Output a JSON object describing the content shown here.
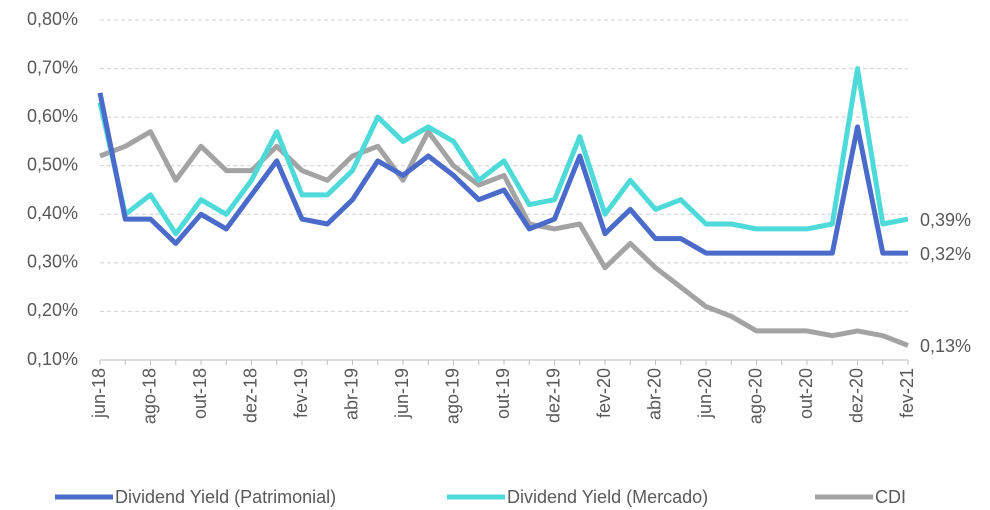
{
  "chart_data": {
    "type": "line",
    "categories": [
      "jun-18",
      null,
      "ago-18",
      null,
      "out-18",
      null,
      "dez-18",
      null,
      "fev-19",
      null,
      "abr-19",
      null,
      "jun-19",
      null,
      "ago-19",
      null,
      "out-19",
      null,
      "dez-19",
      null,
      "fev-20",
      null,
      "abr-20",
      null,
      "jun-20",
      null,
      "ago-20",
      null,
      "out-20",
      null,
      "dez-20",
      null,
      "fev-21"
    ],
    "series": [
      {
        "name": "Dividend Yield (Patrimonial)",
        "color": "#4a6bc9",
        "values": [
          0.65,
          0.39,
          0.39,
          0.34,
          0.4,
          0.37,
          0.44,
          0.51,
          0.39,
          0.38,
          0.43,
          0.51,
          0.48,
          0.52,
          0.48,
          0.43,
          0.45,
          0.37,
          0.39,
          0.52,
          0.36,
          0.41,
          0.35,
          0.35,
          0.32,
          0.32,
          0.32,
          0.32,
          0.32,
          0.32,
          0.58,
          0.32,
          0.32
        ],
        "value_labels": [
          null,
          null,
          null,
          null,
          null,
          null,
          null,
          null,
          null,
          null,
          null,
          null,
          null,
          null,
          null,
          null,
          null,
          null,
          null,
          null,
          null,
          null,
          null,
          null,
          null,
          null,
          null,
          null,
          null,
          null,
          null,
          null,
          "0,32%"
        ]
      },
      {
        "name": "Dividend Yield (Mercado)",
        "color": "#4fdada",
        "values": [
          0.63,
          0.4,
          0.44,
          0.36,
          0.43,
          0.4,
          0.47,
          0.57,
          0.44,
          0.44,
          0.49,
          0.6,
          0.55,
          0.58,
          0.55,
          0.47,
          0.51,
          0.42,
          0.43,
          0.56,
          0.4,
          0.47,
          0.41,
          0.43,
          0.38,
          0.38,
          0.37,
          0.37,
          0.37,
          0.38,
          0.7,
          0.38,
          0.39
        ],
        "value_labels": [
          null,
          null,
          null,
          null,
          null,
          null,
          null,
          null,
          null,
          null,
          null,
          null,
          null,
          null,
          null,
          null,
          null,
          null,
          null,
          null,
          null,
          null,
          null,
          null,
          null,
          null,
          null,
          null,
          null,
          null,
          null,
          null,
          "0,39%"
        ]
      },
      {
        "name": "CDI",
        "color": "#a3a3a3",
        "values": [
          0.52,
          0.54,
          0.57,
          0.47,
          0.54,
          0.49,
          0.49,
          0.54,
          0.49,
          0.47,
          0.52,
          0.54,
          0.47,
          0.57,
          0.5,
          0.46,
          0.48,
          0.38,
          0.37,
          0.38,
          0.29,
          0.34,
          0.29,
          0.25,
          0.21,
          0.19,
          0.16,
          0.16,
          0.16,
          0.15,
          0.16,
          0.15,
          0.13
        ],
        "value_labels": [
          null,
          null,
          null,
          null,
          null,
          null,
          null,
          null,
          null,
          null,
          null,
          null,
          null,
          null,
          null,
          null,
          null,
          null,
          null,
          null,
          null,
          null,
          null,
          null,
          null,
          null,
          null,
          null,
          null,
          null,
          null,
          null,
          "0,13%"
        ]
      }
    ],
    "ylim": [
      0.1,
      0.8
    ],
    "yticks": [
      {
        "value": 0.1,
        "label": "0,10%"
      },
      {
        "value": 0.2,
        "label": "0,20%"
      },
      {
        "value": 0.3,
        "label": "0,30%"
      },
      {
        "value": 0.4,
        "label": "0,40%"
      },
      {
        "value": 0.5,
        "label": "0,50%"
      },
      {
        "value": 0.6,
        "label": "0,60%"
      },
      {
        "value": 0.7,
        "label": "0,70%"
      },
      {
        "value": 0.8,
        "label": "0,80%"
      }
    ],
    "grid": true,
    "legend": "bottom"
  }
}
